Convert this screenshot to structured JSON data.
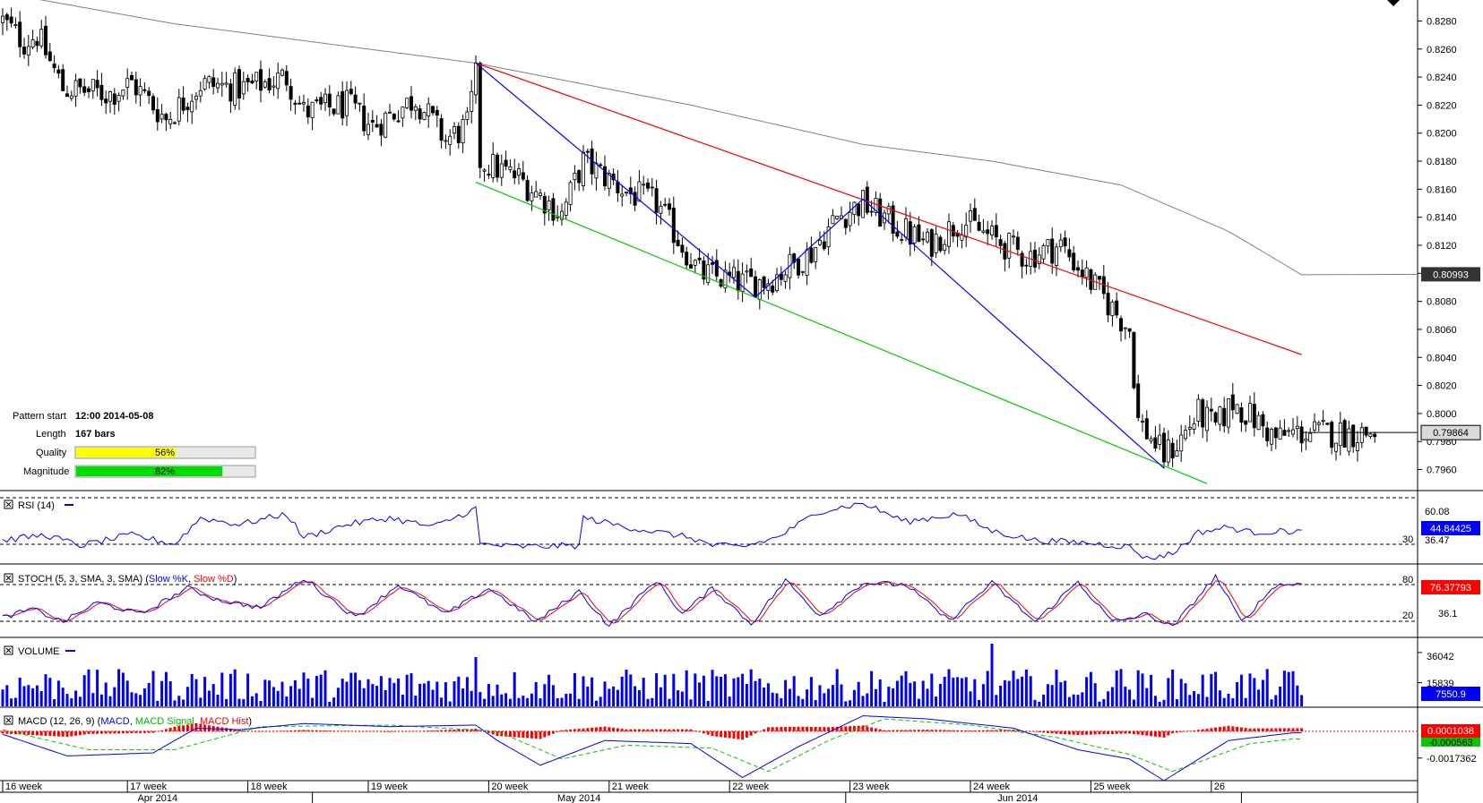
{
  "chart_data": {
    "type": "candlestick",
    "instrument_note": "",
    "main_panel": {
      "ylim": [
        0.7945,
        0.8295
      ],
      "y_ticks": [
        "0.8280",
        "0.8260",
        "0.8240",
        "0.8220",
        "0.8200",
        "0.8180",
        "0.8160",
        "0.8140",
        "0.8120",
        "0.8100",
        "0.8080",
        "0.8060",
        "0.8040",
        "0.8020",
        "0.8000",
        "0.7980",
        "0.7960"
      ],
      "sma_last_label": "0.80993",
      "price_last_label": "0.79864",
      "n_bars": 320,
      "pattern": {
        "start_label": "Pattern start",
        "start_value": "12:00 2014-05-08",
        "length_label": "Length",
        "length_value": "167 bars",
        "quality_label": "Quality",
        "quality_value": "56%",
        "quality_fraction": 0.56,
        "magnitude_label": "Magnitude",
        "magnitude_value": "82%",
        "magnitude_fraction": 0.82
      },
      "sma_path": [
        [
          0,
          0.83
        ],
        [
          40,
          0.8278
        ],
        [
          110,
          0.825
        ],
        [
          160,
          0.822
        ],
        [
          200,
          0.8192
        ],
        [
          230,
          0.818
        ],
        [
          260,
          0.8163
        ],
        [
          285,
          0.813
        ],
        [
          302,
          0.8099
        ]
      ],
      "anchor_points": [
        [
          0,
          0.828
        ],
        [
          5,
          0.8265
        ],
        [
          8,
          0.827
        ],
        [
          14,
          0.8232
        ],
        [
          25,
          0.8228
        ],
        [
          30,
          0.8236
        ],
        [
          38,
          0.821
        ],
        [
          46,
          0.8235
        ],
        [
          56,
          0.8232
        ],
        [
          66,
          0.824
        ],
        [
          70,
          0.8215
        ],
        [
          80,
          0.822
        ],
        [
          86,
          0.8205
        ],
        [
          96,
          0.8225
        ],
        [
          103,
          0.8195
        ],
        [
          108,
          0.8205
        ],
        [
          110,
          0.824
        ],
        [
          111,
          0.818
        ],
        [
          120,
          0.8168
        ],
        [
          130,
          0.8142
        ],
        [
          135,
          0.818
        ],
        [
          145,
          0.8158
        ],
        [
          152,
          0.815
        ],
        [
          162,
          0.81
        ],
        [
          172,
          0.8093
        ],
        [
          178,
          0.8095
        ],
        [
          188,
          0.8115
        ],
        [
          194,
          0.814
        ],
        [
          200,
          0.815
        ],
        [
          207,
          0.8135
        ],
        [
          215,
          0.812
        ],
        [
          223,
          0.8138
        ],
        [
          230,
          0.8125
        ],
        [
          238,
          0.8112
        ],
        [
          246,
          0.812
        ],
        [
          254,
          0.809
        ],
        [
          262,
          0.806
        ],
        [
          264,
          0.7995
        ],
        [
          270,
          0.797
        ],
        [
          273,
          0.7978
        ],
        [
          278,
          0.8
        ],
        [
          282,
          0.799
        ],
        [
          286,
          0.8008
        ],
        [
          292,
          0.7993
        ],
        [
          296,
          0.7982
        ],
        [
          300,
          0.7986
        ]
      ],
      "trendlines": [
        {
          "name": "resistance",
          "color": "#ff0000",
          "from": [
            110,
            0.825
          ],
          "to": [
            302,
            0.8042
          ]
        },
        {
          "name": "support",
          "color": "#00cc00",
          "from": [
            110,
            0.8165
          ],
          "to": [
            280,
            0.795
          ]
        }
      ],
      "zigzag_color": "#0000ff",
      "zigzag": [
        [
          110,
          0.825
        ],
        [
          175,
          0.8083
        ],
        [
          200,
          0.8153
        ],
        [
          270,
          0.7961
        ]
      ]
    },
    "rsi": {
      "label": "RSI (14)",
      "ylim": [
        20,
        75
      ],
      "levels": [
        70,
        30
      ],
      "tick_labels": [
        "60.08",
        "36.47"
      ],
      "level_label_30": "30",
      "last_label": "44.84425",
      "anchors": [
        [
          0,
          38
        ],
        [
          10,
          42
        ],
        [
          18,
          34
        ],
        [
          30,
          42
        ],
        [
          40,
          35
        ],
        [
          46,
          55
        ],
        [
          55,
          50
        ],
        [
          66,
          58
        ],
        [
          70,
          40
        ],
        [
          80,
          50
        ],
        [
          90,
          55
        ],
        [
          100,
          48
        ],
        [
          110,
          62
        ],
        [
          111,
          35
        ],
        [
          120,
          33
        ],
        [
          134,
          34
        ],
        [
          135,
          55
        ],
        [
          145,
          48
        ],
        [
          160,
          40
        ],
        [
          165,
          34
        ],
        [
          172,
          33
        ],
        [
          180,
          40
        ],
        [
          190,
          60
        ],
        [
          200,
          66
        ],
        [
          210,
          52
        ],
        [
          222,
          58
        ],
        [
          230,
          45
        ],
        [
          240,
          38
        ],
        [
          252,
          36
        ],
        [
          262,
          33
        ],
        [
          266,
          24
        ],
        [
          272,
          28
        ],
        [
          278,
          44
        ],
        [
          285,
          48
        ],
        [
          290,
          44
        ],
        [
          300,
          45
        ]
      ]
    },
    "stoch": {
      "label_prefix": "STOCH (5, 3, SMA, 3, SMA)",
      "label_k": "Slow %K",
      "label_d": "Slow %D",
      "ylim": [
        0,
        100
      ],
      "levels": [
        80,
        20
      ],
      "level_label_80": "80",
      "level_label_20": "20",
      "mid_label": "36.1",
      "last_label": "76.37793",
      "anchors": [
        [
          0,
          25
        ],
        [
          7,
          38
        ],
        [
          14,
          18
        ],
        [
          22,
          48
        ],
        [
          32,
          30
        ],
        [
          43,
          70
        ],
        [
          50,
          52
        ],
        [
          60,
          40
        ],
        [
          70,
          85
        ],
        [
          82,
          25
        ],
        [
          92,
          75
        ],
        [
          103,
          30
        ],
        [
          113,
          70
        ],
        [
          124,
          18
        ],
        [
          134,
          65
        ],
        [
          141,
          12
        ],
        [
          152,
          82
        ],
        [
          158,
          30
        ],
        [
          165,
          70
        ],
        [
          174,
          15
        ],
        [
          182,
          82
        ],
        [
          190,
          28
        ],
        [
          200,
          78
        ],
        [
          210,
          75
        ],
        [
          220,
          20
        ],
        [
          230,
          78
        ],
        [
          240,
          18
        ],
        [
          250,
          80
        ],
        [
          258,
          18
        ],
        [
          266,
          30
        ],
        [
          272,
          10
        ],
        [
          282,
          88
        ],
        [
          288,
          18
        ],
        [
          296,
          75
        ],
        [
          300,
          76
        ]
      ]
    },
    "volume": {
      "label": "VOLUME",
      "tick_labels": [
        "36042",
        "15839"
      ],
      "tick_values": [
        36042,
        15839
      ],
      "ymax": 42000,
      "last_label": "7550.9",
      "volume_spikes": [
        [
          110,
          33000
        ],
        [
          230,
          42000
        ],
        [
          260,
          25000
        ]
      ]
    },
    "macd": {
      "label_prefix": "MACD (12, 26, 9)",
      "label_macd": "MACD",
      "label_signal": "MACD Signal",
      "label_hist": "MACD Hist",
      "ylim": [
        -0.0032,
        0.0015
      ],
      "tick_label": "-0.0017362",
      "hist_last_label": "0.0001038",
      "signal_last_label": "-0.000563",
      "macd_anchors": [
        [
          0,
          -0.0002
        ],
        [
          15,
          -0.0016
        ],
        [
          35,
          -0.0014
        ],
        [
          45,
          0.0002
        ],
        [
          55,
          0.0001
        ],
        [
          70,
          0.0005
        ],
        [
          90,
          0.0003
        ],
        [
          110,
          0.0004
        ],
        [
          115,
          -0.0006
        ],
        [
          125,
          -0.0022
        ],
        [
          140,
          -0.0006
        ],
        [
          160,
          -0.0008
        ],
        [
          172,
          -0.003
        ],
        [
          185,
          -0.001
        ],
        [
          200,
          0.001
        ],
        [
          215,
          0.0008
        ],
        [
          235,
          0.0002
        ],
        [
          250,
          -0.0012
        ],
        [
          262,
          -0.0018
        ],
        [
          270,
          -0.0032
        ],
        [
          285,
          -0.0006
        ],
        [
          300,
          -0.0001
        ]
      ],
      "signal_anchors": [
        [
          0,
          0.0001
        ],
        [
          20,
          -0.0012
        ],
        [
          40,
          -0.0012
        ],
        [
          60,
          0.0003
        ],
        [
          90,
          0.0004
        ],
        [
          115,
          0.0
        ],
        [
          130,
          -0.0018
        ],
        [
          145,
          -0.0009
        ],
        [
          165,
          -0.0011
        ],
        [
          178,
          -0.0026
        ],
        [
          192,
          -0.0006
        ],
        [
          205,
          0.0008
        ],
        [
          225,
          0.0004
        ],
        [
          245,
          -0.0004
        ],
        [
          262,
          -0.0015
        ],
        [
          272,
          -0.0026
        ],
        [
          290,
          -0.0008
        ],
        [
          300,
          -0.0005
        ]
      ]
    },
    "x_axis": {
      "week_labels": [
        "16 week",
        "17 week",
        "18 week",
        "19 week",
        "20 week",
        "21 week",
        "22 week",
        "23 week",
        "24 week",
        "25 week",
        "26"
      ],
      "week_bars": [
        0,
        29,
        57,
        85,
        113,
        141,
        169,
        197,
        225,
        253,
        281
      ],
      "month_labels": [
        "Apr 2014",
        "May 2014",
        "Jun 2014"
      ],
      "month_bars": [
        36,
        134,
        236
      ],
      "month_separators": [
        72,
        196,
        288
      ]
    }
  }
}
